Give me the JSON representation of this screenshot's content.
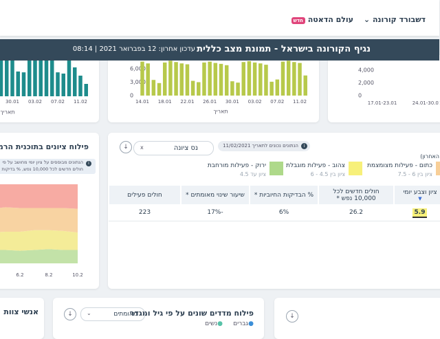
{
  "nav": {
    "items": [
      "דשבורד קורונה",
      "עולם הדאטה"
    ],
    "badge": "חדש"
  },
  "banner": {
    "title": "נגיף הקורונה בישראל - תמונת מצב כללית",
    "updated": "עדכון אחרון: 12 בפברואר 2021 | 08:14"
  },
  "charts": [
    {
      "type": "bar",
      "color": "#1e8c8c",
      "ylim": [
        0,
        100
      ],
      "categories": [
        null,
        null,
        "30.01",
        null,
        null,
        null,
        "03.02",
        null,
        null,
        null,
        "07.02",
        null,
        null,
        null,
        "11.02",
        null
      ],
      "values": [
        95,
        92,
        94,
        60,
        58,
        93,
        95,
        94,
        92,
        90,
        58,
        55,
        88,
        70,
        50,
        30
      ],
      "axis_label": "תאריך"
    },
    {
      "type": "bar",
      "color": "#b7c94b",
      "ylim": [
        0,
        8000
      ],
      "yticks": [
        {
          "value": 6000,
          "label": "6,000"
        },
        {
          "value": 3000,
          "label": "3,000"
        },
        0
      ],
      "categories": [
        "14.01",
        null,
        null,
        null,
        "18.01",
        null,
        null,
        null,
        "22.01",
        null,
        null,
        null,
        "26.01",
        null,
        null,
        null,
        "30.01",
        null,
        null,
        null,
        "03.02",
        null,
        null,
        null,
        "07.02",
        null,
        null,
        null,
        "11.02",
        null
      ],
      "values": [
        7600,
        7200,
        3500,
        2800,
        7400,
        7800,
        7500,
        7200,
        7000,
        3300,
        3000,
        7400,
        7600,
        7300,
        7100,
        6800,
        3200,
        2900,
        7500,
        7700,
        7400,
        7200,
        6900,
        3100,
        3600,
        7600,
        7800,
        7500,
        7300,
        4500
      ],
      "axis_label": "תאריך"
    },
    {
      "type": "bar",
      "ylim": [
        0,
        5000
      ],
      "yticks": [
        {
          "value": 4000,
          "label": "4,000"
        },
        {
          "value": 2000,
          "label": "2,000"
        },
        0
      ],
      "categories": [
        "17.01-23.01",
        "24.01-30.01"
      ]
    }
  ],
  "traffic_light": {
    "title": "פילוח ציונים בתוכנית הרמזור",
    "note": [
      "הנתונים מבוססים על ציון יומי מחושב על פי",
      "חולים חדשים לכל 10,000 נפש, % בדיקות"
    ],
    "chart": {
      "type": "area",
      "ylim": [
        0,
        100
      ],
      "categories": [
        null,
        null,
        "6.2",
        null,
        "8.2",
        null,
        "10.2"
      ],
      "series": [
        {
          "color": "#c3e2a8",
          "values": [
            17,
            17,
            16,
            17,
            18,
            17,
            17
          ]
        },
        {
          "color": "#f4ec98",
          "values": [
            22,
            23,
            24,
            25,
            24,
            24,
            22
          ]
        },
        {
          "color": "#f8d3a2",
          "values": [
            30,
            31,
            30,
            28,
            28,
            29,
            30
          ]
        },
        {
          "color": "#f7aba3",
          "values": [
            31,
            29,
            30,
            30,
            30,
            30,
            31
          ]
        }
      ]
    }
  },
  "city_table": {
    "search": "נס ציונה",
    "date_note": "הנתונים נכונים לתאריך 11/02/2021",
    "legend_heading": "האחרון)",
    "legend": [
      {
        "label": "כתום - פעילות מצומצמת",
        "range": "ציון בין 6 - 7.5",
        "color": "#f8cf98"
      },
      {
        "label": "צהוב - פעילות מוגבלת",
        "range": "ציון בין 4.5 - 6",
        "color": "#f7f07a"
      },
      {
        "label": "ירוק - פעילות מורחבת",
        "range": "ציון עד 4.5",
        "color": "#aed98a"
      }
    ],
    "headers": [
      "ציון וצבע יומי",
      "חולים חדשים לכל 10,000 נפש *",
      "% הבדיקות החיוביות *",
      "שיעור שינוי מאומתים *",
      "חולים פעילים"
    ],
    "row": [
      "5.9",
      "26.2",
      "6%",
      "-17%",
      "223"
    ]
  },
  "bottom": {
    "left_title": "אנשי צוות",
    "mid_title": "פילוח מדדים שונים על פי גיל ומגדר",
    "dropdown": "מאומתים",
    "legend": [
      "גברים",
      "נשים"
    ]
  }
}
